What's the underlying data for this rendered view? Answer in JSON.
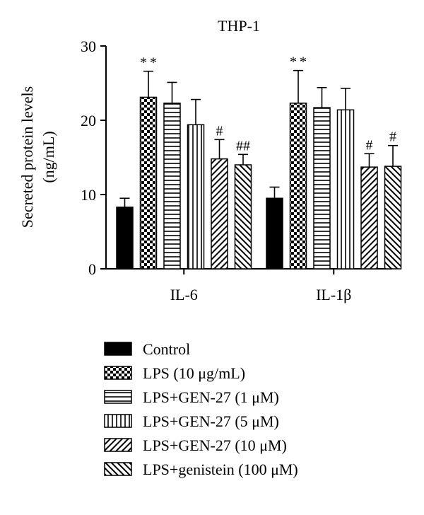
{
  "chart_data": {
    "type": "bar",
    "title": "THP-1",
    "ylabel": "Secreted protein levels\n(ng/mL)",
    "xlabel": "",
    "ylim": [
      0,
      30
    ],
    "yticks": [
      "0",
      "10",
      "20",
      "30"
    ],
    "categories": [
      "IL-6",
      "IL-1β"
    ],
    "legend_position": "bottom",
    "series": [
      {
        "name": "Control",
        "pattern": "solid",
        "values": [
          8.3,
          9.5
        ],
        "errors": [
          1.2,
          1.5
        ],
        "annotations": [
          "",
          ""
        ]
      },
      {
        "name": "LPS (10 μg/mL)",
        "pattern": "checker",
        "values": [
          23.1,
          22.3
        ],
        "errors": [
          3.5,
          4.4
        ],
        "annotations": [
          "**",
          "**"
        ]
      },
      {
        "name": "LPS+GEN-27 (1 μM)",
        "pattern": "hlines",
        "values": [
          22.3,
          21.7
        ],
        "errors": [
          2.8,
          2.7
        ],
        "annotations": [
          "",
          ""
        ]
      },
      {
        "name": "LPS+GEN-27 (5 μM)",
        "pattern": "vlines",
        "values": [
          19.4,
          21.4
        ],
        "errors": [
          3.4,
          2.9
        ],
        "annotations": [
          "",
          ""
        ]
      },
      {
        "name": "LPS+GEN-27 (10 μM)",
        "pattern": "diag-up",
        "values": [
          14.8,
          13.7
        ],
        "errors": [
          2.6,
          1.8
        ],
        "annotations": [
          "#",
          "#"
        ]
      },
      {
        "name": "LPS+genistein (100 μM)",
        "pattern": "diag-down",
        "values": [
          14.0,
          13.8
        ],
        "errors": [
          1.4,
          2.8
        ],
        "annotations": [
          "##",
          "#"
        ]
      }
    ]
  }
}
